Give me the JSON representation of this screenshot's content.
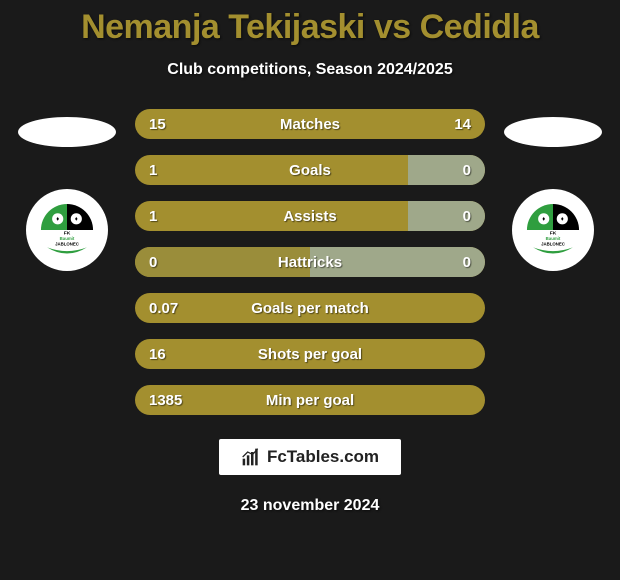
{
  "title_color": "#a38f2f",
  "subtitle_color": "#ffffff",
  "background_color": "#1a1a1a",
  "bar_base_color": "#a38f2f",
  "bar_highlight_color": "#b9a63e",
  "bar_alt_color": "#9fa88a",
  "title": "Nemanja Tekijaski vs Cedidla",
  "subtitle": "Club competitions, Season 2024/2025",
  "date": "23 november 2024",
  "footer_brand": "FcTables.com",
  "rows": [
    {
      "label": "Matches",
      "left": "15",
      "right": "14",
      "left_fill_pct": 0,
      "right_fill_pct": 0,
      "left_fill_color": "#a38f2f",
      "right_fill_color": "#a38f2f"
    },
    {
      "label": "Goals",
      "left": "1",
      "right": "0",
      "left_fill_pct": 0,
      "right_fill_pct": 22,
      "left_fill_color": "#a38f2f",
      "right_fill_color": "#9fa88a"
    },
    {
      "label": "Assists",
      "left": "1",
      "right": "0",
      "left_fill_pct": 0,
      "right_fill_pct": 22,
      "left_fill_color": "#a38f2f",
      "right_fill_color": "#9fa88a"
    },
    {
      "label": "Hattricks",
      "left": "0",
      "right": "0",
      "left_fill_pct": 50,
      "right_fill_pct": 50,
      "left_fill_color": "#9a8d3a",
      "right_fill_color": "#9fa88a"
    },
    {
      "label": "Goals per match",
      "left": "0.07",
      "right": "",
      "left_fill_pct": 0,
      "right_fill_pct": 0,
      "left_fill_color": "#a38f2f",
      "right_fill_color": "#a38f2f"
    },
    {
      "label": "Shots per goal",
      "left": "16",
      "right": "",
      "left_fill_pct": 0,
      "right_fill_pct": 0,
      "left_fill_color": "#a38f2f",
      "right_fill_color": "#a38f2f"
    },
    {
      "label": "Min per goal",
      "left": "1385",
      "right": "",
      "left_fill_pct": 0,
      "right_fill_pct": 0,
      "left_fill_color": "#a38f2f",
      "right_fill_color": "#a38f2f"
    }
  ],
  "badge": {
    "top_text": "FK",
    "mid_text": "Baumit",
    "bottom_text": "JABLONEC",
    "green": "#2f9e3f",
    "black": "#000000",
    "white": "#ffffff"
  }
}
